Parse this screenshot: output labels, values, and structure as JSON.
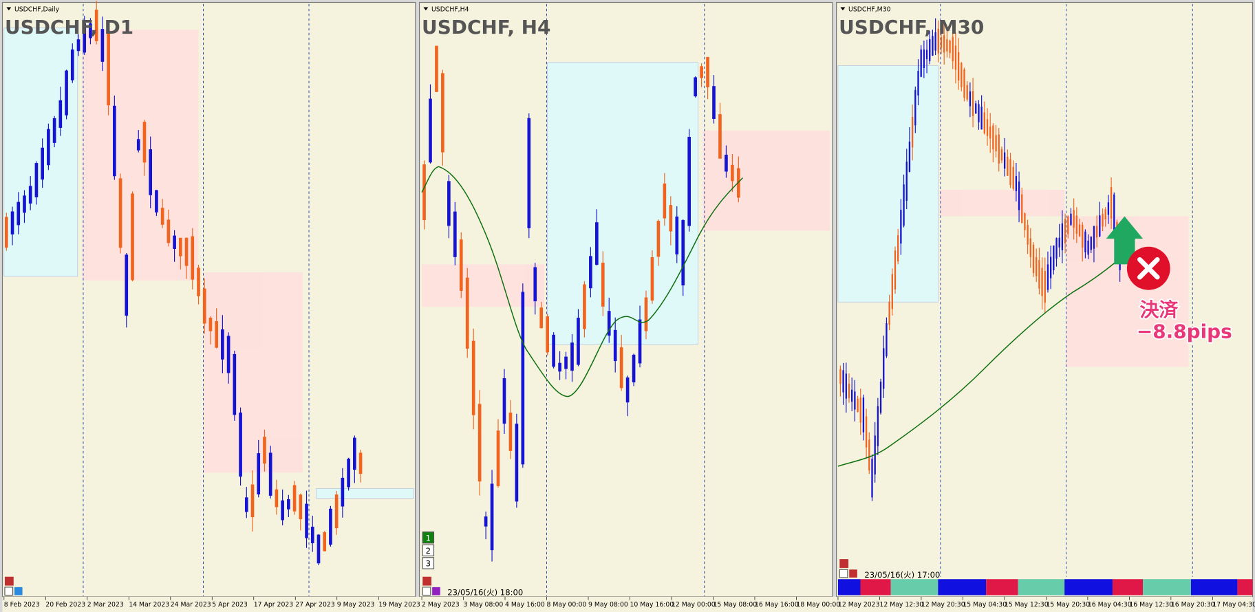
{
  "panels": [
    {
      "symbol_label": "USDCHF,Daily",
      "title": "USDCHF, D1",
      "x_labels": [
        "8 Feb 2023",
        "20 Feb 2023",
        "2 Mar 2023",
        "14 Mar 2023",
        "24 Mar 2023",
        "5 Apr 2023",
        "17 Apr 2023",
        "27 Apr 2023",
        "9 May 2023",
        "19 May 2023"
      ]
    },
    {
      "symbol_label": "USDCHF,H4",
      "title": "USDCHF, H4",
      "x_labels": [
        "2 May 2023",
        "3 May 08:00",
        "4 May 16:00",
        "8 May 00:00",
        "9 May 08:00",
        "10 May 16:00",
        "12 May 00:00",
        "15 May 08:00",
        "16 May 16:00",
        "18 May 00:00"
      ],
      "status": "23/05/16(火) 18:00",
      "buttons": [
        "1",
        "2",
        "3"
      ]
    },
    {
      "symbol_label": "USDCHF,M30",
      "title": "USDCHF, M30",
      "x_labels": [
        "12 May 2023",
        "12 May 12:30",
        "12 May 20:30",
        "15 May 04:30",
        "15 May 12:30",
        "15 May 20:30",
        "16 May 04:30",
        "16 May 12:30",
        "16 May 20:30",
        "17 May 04:30"
      ],
      "status": "23/05/16(火) 17:00"
    }
  ],
  "annotation": {
    "action": "決済",
    "result": "−8.8pips"
  }
}
